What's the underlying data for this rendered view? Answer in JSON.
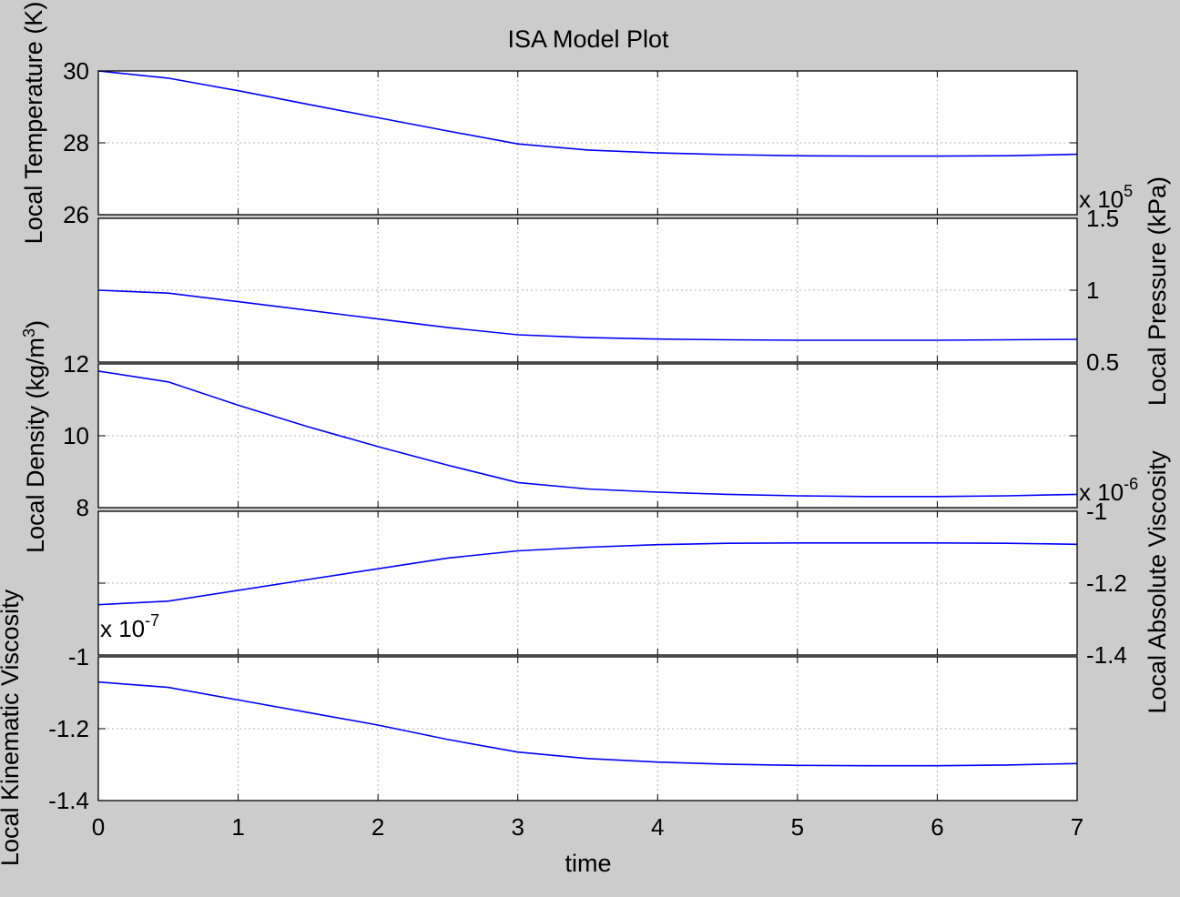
{
  "chart_data": {
    "type": "line",
    "title": "ISA Model Plot",
    "xlabel": "time",
    "xlim": [
      0,
      7
    ],
    "x_ticks": [
      "0",
      "1",
      "2",
      "3",
      "4",
      "5",
      "6",
      "7"
    ],
    "grid": true,
    "line_color": "#0000ff",
    "panels": [
      {
        "id": "temperature",
        "ylabel": "Local Temperature (K)",
        "ylabel_side": "left",
        "ylim": [
          26,
          30
        ],
        "y_ticks": [
          "30",
          "28",
          "26"
        ],
        "y_tick_values": [
          30,
          28,
          26
        ],
        "tick_side": "left",
        "exponent": "",
        "x": [
          0,
          0.5,
          1,
          1.5,
          2,
          2.5,
          3,
          3.5,
          4,
          4.5,
          5,
          5.5,
          6,
          6.5,
          7
        ],
        "y": [
          30.0,
          29.8,
          29.45,
          29.07,
          28.7,
          28.33,
          27.97,
          27.8,
          27.72,
          27.67,
          27.64,
          27.63,
          27.63,
          27.64,
          27.68
        ]
      },
      {
        "id": "pressure",
        "ylabel": "Local Pressure (kPa)",
        "ylabel_side": "right",
        "ylim": [
          0.5,
          1.5
        ],
        "y_ticks": [
          "1.5",
          "1",
          "0.5"
        ],
        "y_tick_values": [
          1.5,
          1.0,
          0.5
        ],
        "tick_side": "right",
        "exponent": "x 10",
        "exponent_power": "5",
        "x": [
          0,
          0.5,
          1,
          1.5,
          2,
          2.5,
          3,
          3.5,
          4,
          4.5,
          5,
          5.5,
          6,
          6.5,
          7
        ],
        "y": [
          1.0,
          0.98,
          0.92,
          0.86,
          0.8,
          0.74,
          0.69,
          0.67,
          0.66,
          0.655,
          0.652,
          0.652,
          0.652,
          0.655,
          0.658
        ]
      },
      {
        "id": "density",
        "ylabel": "Local Density (kg/m",
        "ylabel_power": "3",
        "ylabel_suffix": ")",
        "ylabel_side": "left",
        "ylim": [
          8,
          12
        ],
        "y_ticks": [
          "12",
          "10",
          "8"
        ],
        "y_tick_values": [
          12,
          10,
          8
        ],
        "tick_side": "left",
        "exponent": "",
        "x": [
          0,
          0.5,
          1,
          1.5,
          2,
          2.5,
          3,
          3.5,
          4,
          4.5,
          5,
          5.5,
          6,
          6.5,
          7
        ],
        "y": [
          11.8,
          11.5,
          10.85,
          10.25,
          9.7,
          9.18,
          8.7,
          8.52,
          8.43,
          8.37,
          8.33,
          8.31,
          8.31,
          8.33,
          8.37
        ]
      },
      {
        "id": "absolute-viscosity",
        "ylabel": "Local Absolute Viscosity",
        "ylabel_side": "right",
        "ylim": [
          -1.4,
          -1.0
        ],
        "y_ticks": [
          "-1",
          "-1.2",
          "-1.4"
        ],
        "y_tick_values": [
          -1.0,
          -1.2,
          -1.4
        ],
        "tick_side": "right",
        "exponent": "x 10",
        "exponent_power": "-6",
        "x": [
          0,
          0.5,
          1,
          1.5,
          2,
          2.5,
          3,
          3.5,
          4,
          4.5,
          5,
          5.5,
          6,
          6.5,
          7
        ],
        "y": [
          -1.26,
          -1.25,
          -1.22,
          -1.19,
          -1.16,
          -1.13,
          -1.11,
          -1.1,
          -1.093,
          -1.089,
          -1.088,
          -1.088,
          -1.088,
          -1.089,
          -1.092
        ]
      },
      {
        "id": "kinematic-viscosity",
        "ylabel": "Local Kinematic Viscosity",
        "ylabel_side": "left",
        "ylim": [
          -1.4,
          -1.0
        ],
        "y_ticks": [
          "-1",
          "-1.2",
          "-1.4"
        ],
        "y_tick_values": [
          -1.0,
          -1.2,
          -1.4
        ],
        "tick_side": "left",
        "exponent": "x 10",
        "exponent_power": "-7",
        "x": [
          0,
          0.5,
          1,
          1.5,
          2,
          2.5,
          3,
          3.5,
          4,
          4.5,
          5,
          5.5,
          6,
          6.5,
          7
        ],
        "y": [
          -1.07,
          -1.085,
          -1.12,
          -1.155,
          -1.19,
          -1.23,
          -1.265,
          -1.283,
          -1.293,
          -1.299,
          -1.302,
          -1.303,
          -1.303,
          -1.301,
          -1.297
        ]
      }
    ]
  }
}
